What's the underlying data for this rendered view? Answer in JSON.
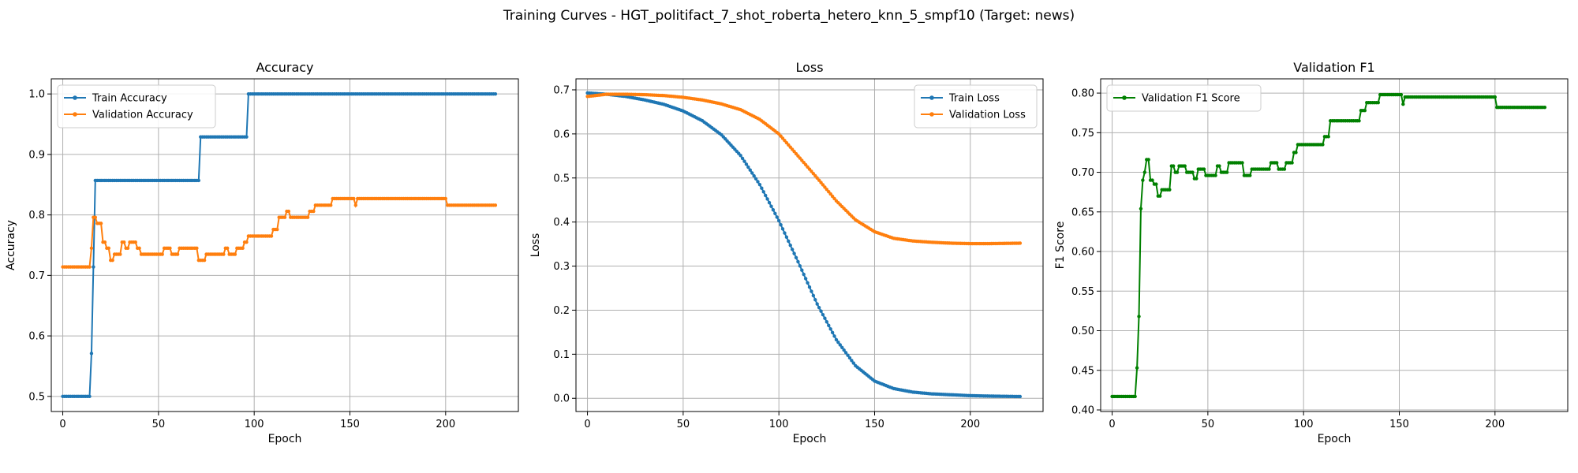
{
  "suptitle": "Training Curves - HGT_politifact_7_shot_roberta_hetero_knn_5_smpf10 (Target: news)",
  "colors": {
    "blue": "#1f77b4",
    "orange": "#ff7f0e",
    "green": "#008000",
    "grid": "#b0b0b0"
  },
  "chart_data": [
    {
      "type": "line",
      "title": "Accuracy",
      "xlabel": "Epoch",
      "ylabel": "Accuracy",
      "xlim": [
        -6,
        238
      ],
      "ylim": [
        0.475,
        1.025
      ],
      "xticks": [
        0,
        50,
        100,
        150,
        200
      ],
      "yticks": [
        0.5,
        0.6,
        0.7,
        0.8,
        0.9,
        1.0
      ],
      "ytick_labels": [
        "0.5",
        "0.6",
        "0.7",
        "0.8",
        "0.9",
        "1.0"
      ],
      "grid": true,
      "legend": "upper-left",
      "series": [
        {
          "name": "Train Accuracy",
          "color": "#1f77b4",
          "segments": [
            [
              0,
              14,
              0.5
            ],
            [
              15,
              15,
              0.571
            ],
            [
              16,
              16,
              0.714
            ],
            [
              17,
              71,
              0.857
            ],
            [
              72,
              96,
              0.929
            ],
            [
              97,
              226,
              1.0
            ]
          ]
        },
        {
          "name": "Validation Accuracy",
          "color": "#ff7f0e",
          "segments": [
            [
              0,
              14,
              0.714
            ],
            [
              15,
              15,
              0.745
            ],
            [
              16,
              17,
              0.796
            ],
            [
              18,
              20,
              0.786
            ],
            [
              21,
              22,
              0.755
            ],
            [
              23,
              24,
              0.745
            ],
            [
              25,
              26,
              0.725
            ],
            [
              27,
              30,
              0.735
            ],
            [
              31,
              32,
              0.755
            ],
            [
              33,
              34,
              0.745
            ],
            [
              35,
              38,
              0.755
            ],
            [
              39,
              40,
              0.745
            ],
            [
              41,
              44,
              0.735
            ],
            [
              45,
              52,
              0.735
            ],
            [
              53,
              56,
              0.745
            ],
            [
              57,
              60,
              0.735
            ],
            [
              61,
              64,
              0.745
            ],
            [
              65,
              70,
              0.745
            ],
            [
              71,
              74,
              0.725
            ],
            [
              75,
              84,
              0.735
            ],
            [
              85,
              86,
              0.745
            ],
            [
              87,
              90,
              0.735
            ],
            [
              91,
              94,
              0.745
            ],
            [
              95,
              96,
              0.755
            ],
            [
              97,
              109,
              0.765
            ],
            [
              110,
              112,
              0.776
            ],
            [
              113,
              116,
              0.796
            ],
            [
              117,
              118,
              0.806
            ],
            [
              119,
              128,
              0.796
            ],
            [
              129,
              131,
              0.806
            ],
            [
              132,
              140,
              0.816
            ],
            [
              141,
              152,
              0.827
            ],
            [
              153,
              153,
              0.816
            ],
            [
              154,
              200,
              0.827
            ],
            [
              201,
              226,
              0.816
            ]
          ]
        }
      ]
    },
    {
      "type": "line",
      "title": "Loss",
      "xlabel": "Epoch",
      "ylabel": "Loss",
      "xlim": [
        -6,
        238
      ],
      "ylim": [
        -0.03,
        0.725
      ],
      "xticks": [
        0,
        50,
        100,
        150,
        200
      ],
      "yticks": [
        0.0,
        0.1,
        0.2,
        0.3,
        0.4,
        0.5,
        0.6,
        0.7
      ],
      "ytick_labels": [
        "0.0",
        "0.1",
        "0.2",
        "0.3",
        "0.4",
        "0.5",
        "0.6",
        "0.7"
      ],
      "grid": true,
      "legend": "upper-right",
      "series": [
        {
          "name": "Train Loss",
          "color": "#1f77b4",
          "points": [
            [
              0,
              0.693
            ],
            [
              10,
              0.69
            ],
            [
              20,
              0.685
            ],
            [
              30,
              0.677
            ],
            [
              40,
              0.667
            ],
            [
              50,
              0.652
            ],
            [
              60,
              0.63
            ],
            [
              70,
              0.598
            ],
            [
              80,
              0.551
            ],
            [
              90,
              0.485
            ],
            [
              100,
              0.403
            ],
            [
              110,
              0.31
            ],
            [
              120,
              0.214
            ],
            [
              130,
              0.133
            ],
            [
              140,
              0.074
            ],
            [
              150,
              0.039
            ],
            [
              160,
              0.022
            ],
            [
              170,
              0.014
            ],
            [
              180,
              0.01
            ],
            [
              190,
              0.008
            ],
            [
              200,
              0.006
            ],
            [
              210,
              0.005
            ],
            [
              226,
              0.004
            ]
          ]
        },
        {
          "name": "Validation Loss",
          "color": "#ff7f0e",
          "points": [
            [
              0,
              0.685
            ],
            [
              10,
              0.69
            ],
            [
              20,
              0.69
            ],
            [
              30,
              0.689
            ],
            [
              40,
              0.687
            ],
            [
              50,
              0.683
            ],
            [
              60,
              0.677
            ],
            [
              70,
              0.668
            ],
            [
              80,
              0.655
            ],
            [
              90,
              0.633
            ],
            [
              100,
              0.6
            ],
            [
              110,
              0.55
            ],
            [
              120,
              0.5
            ],
            [
              130,
              0.448
            ],
            [
              140,
              0.405
            ],
            [
              150,
              0.378
            ],
            [
              160,
              0.363
            ],
            [
              170,
              0.357
            ],
            [
              180,
              0.354
            ],
            [
              190,
              0.352
            ],
            [
              200,
              0.351
            ],
            [
              210,
              0.351
            ],
            [
              226,
              0.352
            ]
          ]
        }
      ]
    },
    {
      "type": "line",
      "title": "Validation F1",
      "xlabel": "Epoch",
      "ylabel": "F1 Score",
      "xlim": [
        -6,
        238
      ],
      "ylim": [
        0.398,
        0.818
      ],
      "xticks": [
        0,
        50,
        100,
        150,
        200
      ],
      "yticks": [
        0.4,
        0.45,
        0.5,
        0.55,
        0.6,
        0.65,
        0.7,
        0.75,
        0.8
      ],
      "ytick_labels": [
        "0.40",
        "0.45",
        "0.50",
        "0.55",
        "0.60",
        "0.65",
        "0.70",
        "0.75",
        "0.80"
      ],
      "grid": true,
      "legend": "upper-left",
      "series": [
        {
          "name": "Validation F1 Score",
          "color": "#008000",
          "segments": [
            [
              0,
              12,
              0.417
            ],
            [
              13,
              13,
              0.453
            ],
            [
              14,
              14,
              0.518
            ],
            [
              15,
              15,
              0.654
            ],
            [
              16,
              16,
              0.69
            ],
            [
              17,
              17,
              0.7
            ],
            [
              18,
              19,
              0.716
            ],
            [
              20,
              21,
              0.69
            ],
            [
              22,
              23,
              0.685
            ],
            [
              24,
              25,
              0.67
            ],
            [
              26,
              30,
              0.678
            ],
            [
              31,
              32,
              0.708
            ],
            [
              33,
              34,
              0.7
            ],
            [
              35,
              38,
              0.708
            ],
            [
              39,
              42,
              0.7
            ],
            [
              43,
              44,
              0.692
            ],
            [
              45,
              48,
              0.704
            ],
            [
              49,
              54,
              0.696
            ],
            [
              55,
              56,
              0.708
            ],
            [
              57,
              60,
              0.7
            ],
            [
              61,
              68,
              0.712
            ],
            [
              69,
              72,
              0.696
            ],
            [
              73,
              82,
              0.704
            ],
            [
              83,
              86,
              0.712
            ],
            [
              87,
              90,
              0.704
            ],
            [
              91,
              94,
              0.712
            ],
            [
              95,
              96,
              0.725
            ],
            [
              97,
              110,
              0.735
            ],
            [
              111,
              113,
              0.745
            ],
            [
              114,
              119,
              0.765
            ],
            [
              120,
              129,
              0.765
            ],
            [
              130,
              132,
              0.778
            ],
            [
              133,
              139,
              0.788
            ],
            [
              140,
              151,
              0.798
            ],
            [
              152,
              152,
              0.786
            ],
            [
              153,
              200,
              0.795
            ],
            [
              201,
              226,
              0.782
            ]
          ]
        }
      ]
    }
  ]
}
